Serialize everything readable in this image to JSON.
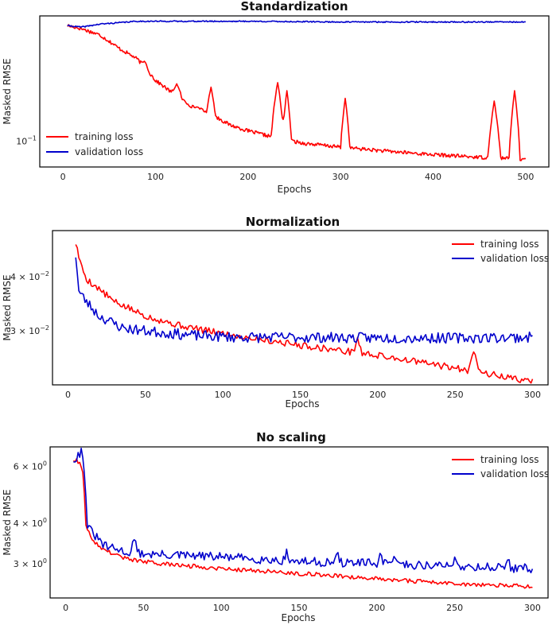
{
  "colors": {
    "training": "#ff0000",
    "validation": "#0000cc"
  },
  "chart_data": [
    {
      "type": "line",
      "title": "Standardization",
      "xlabel": "Epochs",
      "ylabel": "Masked RMSE",
      "yscale": "log",
      "xlim": [
        -25,
        525
      ],
      "ylim": [
        0.07,
        0.56
      ],
      "xticks": [
        0,
        100,
        200,
        300,
        400,
        500
      ],
      "xtick_labels": [
        "0",
        "100",
        "200",
        "300",
        "400",
        "500"
      ],
      "yticks": [
        0.1
      ],
      "ytick_labels": [
        {
          "base": "10",
          "exp": "−1"
        }
      ],
      "legend_position": "lower-left",
      "legend": [
        "training loss",
        "validation loss"
      ],
      "series": [
        {
          "name": "training loss",
          "x_range": [
            5,
            500
          ],
          "trend": [
            [
              5,
              0.49
            ],
            [
              20,
              0.47
            ],
            [
              40,
              0.43
            ],
            [
              60,
              0.36
            ],
            [
              80,
              0.31
            ],
            [
              100,
              0.23
            ],
            [
              120,
              0.19
            ],
            [
              140,
              0.16
            ],
            [
              160,
              0.145
            ],
            [
              180,
              0.125
            ],
            [
              200,
              0.115
            ],
            [
              220,
              0.108
            ],
            [
              240,
              0.102
            ],
            [
              260,
              0.097
            ],
            [
              300,
              0.092
            ],
            [
              350,
              0.087
            ],
            [
              400,
              0.083
            ],
            [
              450,
              0.08
            ],
            [
              500,
              0.078
            ]
          ],
          "spikes": [
            [
              88,
              0.3,
              4
            ],
            [
              123,
              0.22,
              5
            ],
            [
              145,
              0.16,
              5
            ],
            [
              160,
              0.21,
              4
            ],
            [
              232,
              0.12,
              6
            ],
            [
              242,
              0.2,
              4
            ],
            [
              305,
              0.18,
              4
            ],
            [
              466,
              0.093,
              6
            ],
            [
              488,
              0.2,
              5
            ]
          ],
          "noise": 0.025,
          "seed": 17
        },
        {
          "name": "validation loss",
          "x_range": [
            5,
            500
          ],
          "trend": [
            [
              5,
              0.49
            ],
            [
              20,
              0.48
            ],
            [
              40,
              0.5
            ],
            [
              60,
              0.51
            ],
            [
              80,
              0.52
            ],
            [
              100,
              0.52
            ],
            [
              200,
              0.52
            ],
            [
              300,
              0.515
            ],
            [
              400,
              0.515
            ],
            [
              500,
              0.515
            ]
          ],
          "spikes": [],
          "noise": 0.008,
          "seed": 41
        }
      ]
    },
    {
      "type": "line",
      "title": "Normalization",
      "xlabel": "Epochs",
      "ylabel": "Masked RMSE",
      "yscale": "log",
      "xlim": [
        -10,
        310
      ],
      "ylim": [
        0.0225,
        0.0512
      ],
      "xticks": [
        0,
        50,
        100,
        150,
        200,
        250,
        300
      ],
      "xtick_labels": [
        "0",
        "50",
        "100",
        "150",
        "200",
        "250",
        "300"
      ],
      "yticks": [
        0.04,
        0.03
      ],
      "ytick_labels": [
        {
          "base": "4 × 10",
          "exp": "−2"
        },
        {
          "base": "3 × 10",
          "exp": "−2"
        }
      ],
      "legend_position": "upper-right",
      "legend": [
        "training loss",
        "validation loss"
      ],
      "series": [
        {
          "name": "training loss",
          "x_range": [
            5,
            300
          ],
          "trend": [
            [
              5,
              0.048
            ],
            [
              8,
              0.043
            ],
            [
              12,
              0.0395
            ],
            [
              20,
              0.0375
            ],
            [
              30,
              0.035
            ],
            [
              50,
              0.0325
            ],
            [
              70,
              0.031
            ],
            [
              90,
              0.03
            ],
            [
              110,
              0.0292
            ],
            [
              130,
              0.0285
            ],
            [
              150,
              0.0278
            ],
            [
              170,
              0.0272
            ],
            [
              190,
              0.0266
            ],
            [
              210,
              0.026
            ],
            [
              230,
              0.0253
            ],
            [
              250,
              0.0246
            ],
            [
              270,
              0.0239
            ],
            [
              290,
              0.0232
            ],
            [
              300,
              0.0229
            ]
          ],
          "spikes": [
            [
              187,
              0.002,
              2
            ],
            [
              262,
              0.003,
              3
            ]
          ],
          "noise": 0.018,
          "seed": 5
        },
        {
          "name": "validation loss",
          "x_range": [
            5,
            300
          ],
          "trend": [
            [
              5,
              0.045
            ],
            [
              7,
              0.037
            ],
            [
              12,
              0.035
            ],
            [
              20,
              0.0325
            ],
            [
              35,
              0.0305
            ],
            [
              50,
              0.03
            ],
            [
              80,
              0.0293
            ],
            [
              110,
              0.029
            ],
            [
              150,
              0.029
            ],
            [
              200,
              0.0289
            ],
            [
              250,
              0.0289
            ],
            [
              300,
              0.029
            ]
          ],
          "spikes": [],
          "noise": 0.028,
          "seed": 23
        }
      ]
    },
    {
      "type": "line",
      "title": "No scaling",
      "xlabel": "Epochs",
      "ylabel": "Masked RMSE",
      "yscale": "log",
      "xlim": [
        -10,
        310
      ],
      "ylim": [
        2.35,
        6.9
      ],
      "xticks": [
        0,
        50,
        100,
        150,
        200,
        250,
        300
      ],
      "xtick_labels": [
        "0",
        "50",
        "100",
        "150",
        "200",
        "250",
        "300"
      ],
      "yticks": [
        6,
        4,
        3
      ],
      "ytick_labels": [
        {
          "base": "6 × 10",
          "exp": "0"
        },
        {
          "base": "4 × 10",
          "exp": "0"
        },
        {
          "base": "3 × 10",
          "exp": "0"
        }
      ],
      "legend_position": "upper-right",
      "legend": [
        "training loss",
        "validation loss"
      ],
      "series": [
        {
          "name": "training loss",
          "x_range": [
            5,
            300
          ],
          "trend": [
            [
              5,
              6.3
            ],
            [
              9,
              6.2
            ],
            [
              11,
              5.8
            ],
            [
              13,
              4.0
            ],
            [
              16,
              3.6
            ],
            [
              25,
              3.3
            ],
            [
              40,
              3.1
            ],
            [
              60,
              3.0
            ],
            [
              100,
              2.9
            ],
            [
              150,
              2.8
            ],
            [
              200,
              2.7
            ],
            [
              250,
              2.6
            ],
            [
              300,
              2.55
            ]
          ],
          "spikes": [],
          "noise": 0.015,
          "seed": 9
        },
        {
          "name": "validation loss",
          "x_range": [
            5,
            300
          ],
          "trend": [
            [
              5,
              6.3
            ],
            [
              8,
              6.5
            ],
            [
              10,
              6.7
            ],
            [
              12,
              5.9
            ],
            [
              14,
              3.9
            ],
            [
              18,
              3.7
            ],
            [
              25,
              3.4
            ],
            [
              40,
              3.25
            ],
            [
              60,
              3.2
            ],
            [
              100,
              3.15
            ],
            [
              150,
              3.05
            ],
            [
              200,
              3.0
            ],
            [
              250,
              2.95
            ],
            [
              300,
              2.9
            ]
          ],
          "spikes": [
            [
              44,
              0.4,
              1
            ],
            [
              142,
              0.2,
              1
            ],
            [
              175,
              0.2,
              1
            ],
            [
              202,
              0.25,
              1
            ],
            [
              212,
              0.2,
              1
            ],
            [
              250,
              0.2,
              1
            ],
            [
              284,
              0.2,
              1
            ]
          ],
          "noise": 0.032,
          "seed": 31
        }
      ]
    }
  ]
}
